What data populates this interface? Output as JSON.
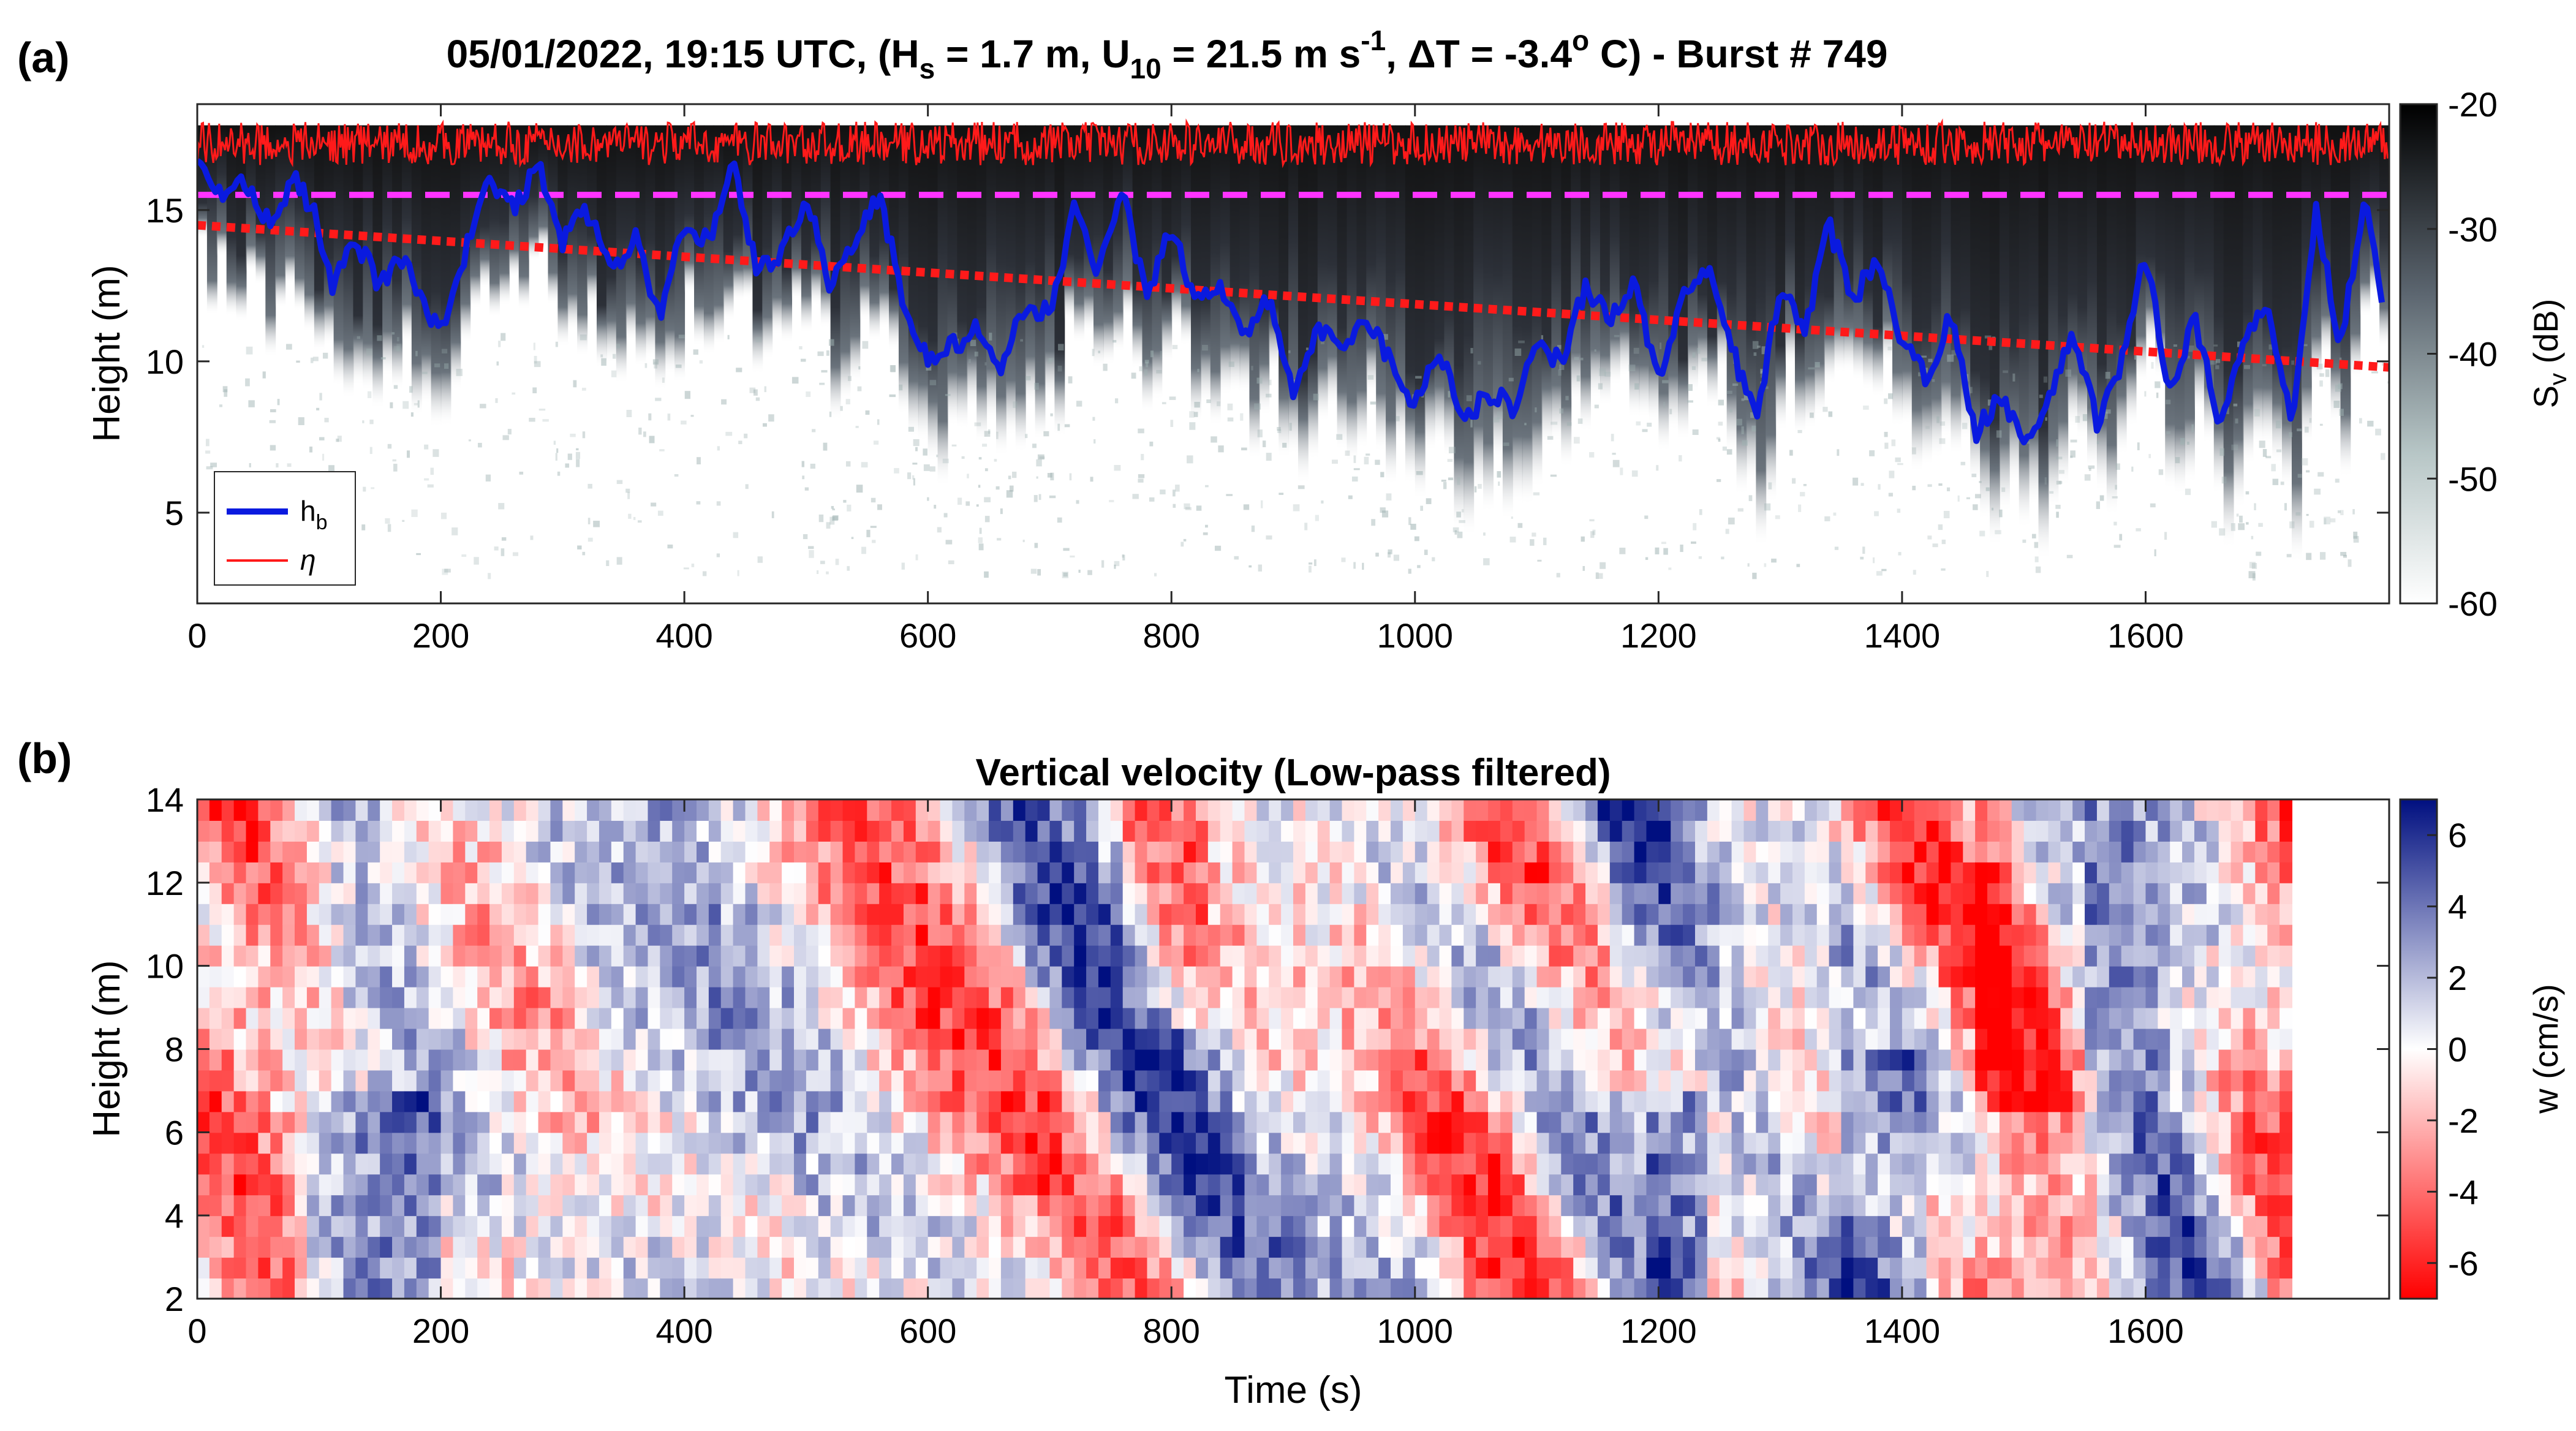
{
  "chart_data": [
    {
      "panel_label": "(a)",
      "type": "heatmap",
      "title": {
        "date_time": "05/01/2022, 19:15 UTC",
        "hs": "H",
        "hs_sub": "s",
        "hs_value": " = 1.7 m, ",
        "u": "U",
        "u_sub": "10",
        "u_value": " = 21.5 m s",
        "u_sup": "-1",
        "dt": ", ΔT = -3.4",
        "dt_sup": "o",
        "dt_unit": " C) - Burst # 749"
      },
      "ylabel": "Height (m)",
      "xlim": [
        0,
        1800
      ],
      "ylim": [
        2,
        18.5
      ],
      "x_ticks": [
        "0",
        "200",
        "400",
        "600",
        "800",
        "1000",
        "1200",
        "1400",
        "1600"
      ],
      "y_ticks": [
        "5",
        "10",
        "15"
      ],
      "colorbar": {
        "label": "S",
        "label_sub": "v",
        "label_unit": " (dB)",
        "range": [
          -60,
          -20
        ],
        "ticks": [
          "-20",
          "-30",
          "-40",
          "-50",
          "-60"
        ],
        "colors": [
          "#ffffff",
          "#b7c6c6",
          "#5c6670",
          "#000000"
        ]
      },
      "legend": {
        "position": "bottom-left",
        "entries": [
          {
            "symbol": "h",
            "sub": "b",
            "color": "#0a1adf"
          },
          {
            "symbol": "η",
            "color": "#ff1a1a"
          }
        ]
      },
      "series": [
        {
          "name": "h_b",
          "color": "#0a1adf",
          "x": [
            0,
            20,
            40,
            60,
            80,
            95,
            110,
            130,
            150,
            170,
            185,
            200,
            215,
            240,
            260,
            280,
            300,
            320,
            340,
            360,
            380,
            400,
            420,
            440,
            460,
            480,
            500,
            520,
            540,
            560,
            580,
            600,
            620,
            640,
            660,
            680,
            700,
            720,
            740,
            760,
            780,
            800,
            820,
            840,
            860,
            880,
            900,
            920,
            940,
            960,
            980,
            1000,
            1020,
            1040,
            1060,
            1080,
            1100,
            1120,
            1140,
            1160,
            1180,
            1200,
            1220,
            1240,
            1260,
            1280,
            1300,
            1320,
            1340,
            1360,
            1380,
            1400,
            1420,
            1440,
            1460,
            1480,
            1500,
            1520,
            1540,
            1560,
            1580,
            1600,
            1620,
            1640,
            1660,
            1680,
            1700,
            1720,
            1740,
            1760,
            1780,
            1795
          ],
          "values": [
            16.5,
            15.5,
            16.0,
            14.5,
            16.0,
            15.0,
            12.5,
            14.0,
            12.5,
            13.5,
            12.0,
            11.0,
            13.0,
            16.0,
            15.0,
            16.5,
            14.0,
            15.0,
            13.0,
            14.0,
            11.5,
            14.5,
            14.0,
            16.5,
            13.0,
            13.5,
            15.5,
            12.5,
            14.0,
            15.5,
            12.0,
            10.0,
            10.5,
            11.0,
            9.5,
            12.0,
            11.5,
            15.0,
            13.0,
            15.5,
            12.0,
            14.5,
            12.0,
            12.5,
            11.0,
            12.0,
            9.0,
            11.0,
            10.5,
            11.5,
            10.0,
            8.5,
            10.5,
            8.0,
            9.0,
            8.5,
            10.5,
            10.0,
            12.5,
            11.5,
            12.5,
            9.5,
            12.0,
            13.0,
            10.5,
            8.0,
            12.5,
            11.0,
            14.5,
            12.0,
            13.5,
            10.5,
            9.5,
            11.5,
            7.5,
            9.0,
            7.5,
            8.5,
            11.0,
            8.0,
            10.0,
            13.5,
            9.0,
            11.5,
            8.0,
            10.5,
            12.0,
            8.0,
            15.0,
            10.5,
            15.5,
            12.0
          ]
        },
        {
          "name": "η",
          "color": "#ff1a1a",
          "mean": 17.2,
          "amplitude": 0.9
        },
        {
          "name": "dashed-magenta",
          "color": "#ff33ff",
          "x": [
            0,
            1800
          ],
          "values": [
            15.5,
            15.5
          ]
        },
        {
          "name": "dotted-red",
          "color": "#ff1a1a",
          "x": [
            0,
            1800
          ],
          "values": [
            14.5,
            9.8
          ]
        }
      ]
    },
    {
      "panel_label": "(b)",
      "type": "heatmap",
      "title": "Vertical velocity (Low-pass filtered)",
      "xlabel": "Time (s)",
      "ylabel": "Height (m)",
      "xlim": [
        0,
        1800
      ],
      "ylim": [
        2,
        14
      ],
      "data_x_end": 1720,
      "x_ticks": [
        "0",
        "200",
        "400",
        "600",
        "800",
        "1000",
        "1200",
        "1400",
        "1600"
      ],
      "y_ticks": [
        "2",
        "4",
        "6",
        "8",
        "10",
        "12",
        "14"
      ],
      "colorbar": {
        "label": "w (cm/s)",
        "range": [
          -7,
          7
        ],
        "ticks": [
          "6",
          "4",
          "2",
          "0",
          "-2",
          "-4",
          "-6"
        ],
        "colors": [
          "#ff0000",
          "#ffffff",
          "#000f80"
        ]
      }
    }
  ]
}
